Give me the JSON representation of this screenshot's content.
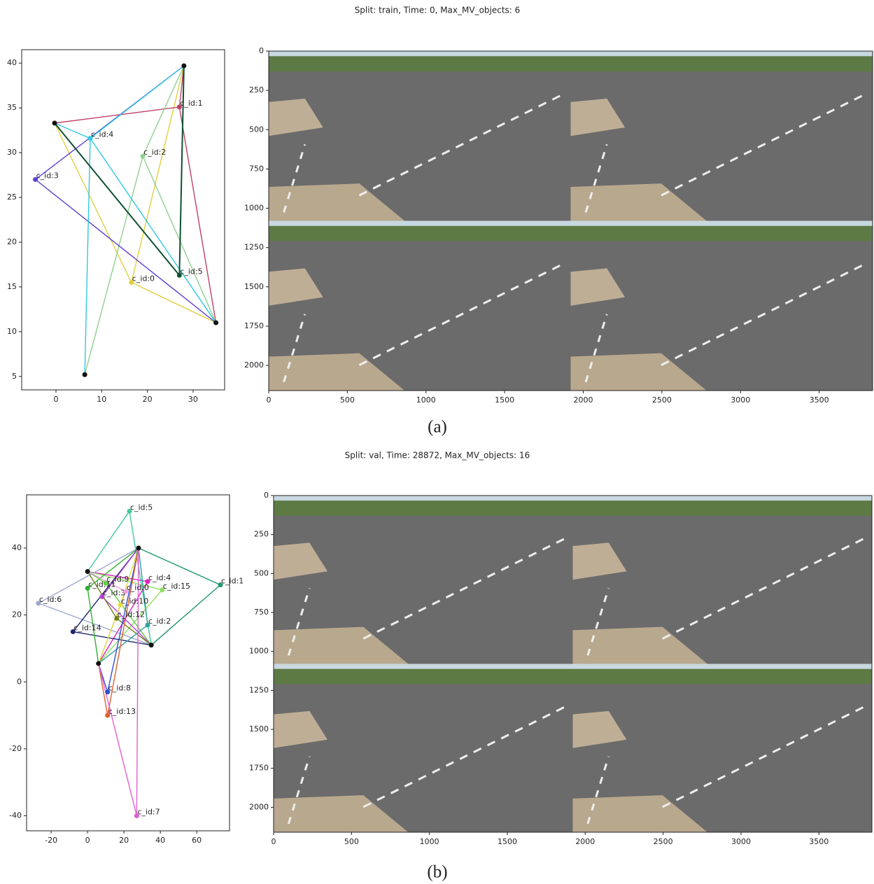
{
  "chart_data": [
    {
      "type": "network",
      "title": "Split: train, Time: 0, Max_MV_objects: 6",
      "caption": "(a)",
      "xlim": [
        -7.5,
        36.9
      ],
      "ylim": [
        3.5,
        41.5
      ],
      "xticks": [
        0,
        10,
        20,
        30
      ],
      "yticks": [
        5,
        10,
        15,
        20,
        25,
        30,
        35,
        40
      ],
      "nodes": [
        {
          "x": 28,
          "y": 39.7,
          "color": "#111111"
        },
        {
          "x": -0.3,
          "y": 33.3,
          "color": "#111111"
        },
        {
          "x": 35,
          "y": 11,
          "color": "#111111"
        },
        {
          "x": 6.3,
          "y": 5.2,
          "color": "#111111"
        },
        {
          "label": "c_id:0",
          "x": 16.5,
          "y": 15.5,
          "color": "#e0d040"
        },
        {
          "label": "c_id:1",
          "x": 27,
          "y": 35.1,
          "color": "#c04068"
        },
        {
          "label": "c_id:2",
          "x": 19,
          "y": 29.6,
          "color": "#90d090"
        },
        {
          "label": "c_id:3",
          "x": -4.5,
          "y": 27,
          "color": "#6040d0"
        },
        {
          "label": "c_id:4",
          "x": 7.5,
          "y": 31.6,
          "color": "#30c8e0"
        },
        {
          "label": "c_id:5",
          "x": 27,
          "y": 16.3,
          "color": "#105030"
        }
      ],
      "edges": [
        {
          "from": 4,
          "to": 1,
          "color": "#e0d040"
        },
        {
          "from": 4,
          "to": 2,
          "color": "#e0d040"
        },
        {
          "from": 4,
          "to": 0,
          "color": "#e0d040"
        },
        {
          "from": 5,
          "to": 1,
          "color": "#c04068"
        },
        {
          "from": 5,
          "to": 2,
          "color": "#c04068"
        },
        {
          "from": 5,
          "to": 0,
          "color": "#c04068"
        },
        {
          "from": 6,
          "to": 3,
          "color": "#90d090"
        },
        {
          "from": 6,
          "to": 0,
          "color": "#90d090"
        },
        {
          "from": 6,
          "to": 2,
          "color": "#90d090"
        },
        {
          "from": 7,
          "to": 0,
          "color": "#6040d0"
        },
        {
          "from": 7,
          "to": 2,
          "color": "#6040d0"
        },
        {
          "from": 8,
          "to": 0,
          "color": "#30c8e0"
        },
        {
          "from": 8,
          "to": 3,
          "color": "#30c8e0"
        },
        {
          "from": 8,
          "to": 2,
          "color": "#30c8e0"
        },
        {
          "from": 8,
          "to": 1,
          "color": "#30c8e0"
        },
        {
          "from": 9,
          "to": 1,
          "color": "#105030"
        },
        {
          "from": 9,
          "to": 0,
          "color": "#105030"
        }
      ]
    },
    {
      "type": "image",
      "xlim": [
        0,
        3840
      ],
      "ylim": [
        2160,
        0
      ],
      "xticks": [
        0,
        500,
        1000,
        1500,
        2000,
        2500,
        3000,
        3500
      ],
      "yticks": [
        0,
        250,
        500,
        750,
        1000,
        1250,
        1500,
        1750,
        2000
      ]
    },
    {
      "type": "network",
      "title": "Split: val, Time: 28872, Max_MV_objects: 16",
      "caption": "(b)",
      "xlim": [
        -33.5,
        78
      ],
      "ylim": [
        -44.5,
        55.9
      ],
      "xticks": [
        -20,
        0,
        20,
        40,
        60
      ],
      "yticks": [
        -40,
        -20,
        0,
        20,
        40
      ],
      "nodes": [
        {
          "x": 28,
          "y": 40,
          "color": "#111111"
        },
        {
          "x": 0,
          "y": 33,
          "color": "#111111"
        },
        {
          "x": 35,
          "y": 11,
          "color": "#111111"
        },
        {
          "x": 6,
          "y": 5.5,
          "color": "#111111"
        },
        {
          "label": "c_id:5",
          "x": 23,
          "y": 51,
          "color": "#40c8a0"
        },
        {
          "label": "c_id:4",
          "x": 33,
          "y": 30,
          "color": "#e020c0"
        },
        {
          "label": "c_id:1",
          "x": 73,
          "y": 29,
          "color": "#209870"
        },
        {
          "label": "c_id:15",
          "x": 41,
          "y": 27.5,
          "color": "#90e060"
        },
        {
          "label": "c_id:6",
          "x": -27,
          "y": 23.5,
          "color": "#a0a8d0"
        },
        {
          "label": "c_id:14",
          "x": -8,
          "y": 15,
          "color": "#202870"
        },
        {
          "label": "c_id:11",
          "x": 0,
          "y": 28,
          "color": "#30b030"
        },
        {
          "label": "c_id:9",
          "x": 10,
          "y": 29.5,
          "color": "#60d040"
        },
        {
          "label": "c_id:3",
          "x": 8,
          "y": 25.5,
          "color": "#b040d0"
        },
        {
          "label": "c_id:0",
          "x": 21,
          "y": 27,
          "color": "#f0a0e0"
        },
        {
          "label": "c_id:10",
          "x": 18,
          "y": 23,
          "color": "#e0e040"
        },
        {
          "label": "c_id:12",
          "x": 16,
          "y": 19,
          "color": "#708020"
        },
        {
          "label": "c_id:2",
          "x": 33,
          "y": 17,
          "color": "#30a0a0"
        },
        {
          "label": "c_id:8",
          "x": 11,
          "y": -3,
          "color": "#3050d0"
        },
        {
          "label": "c_id:13",
          "x": 11,
          "y": -10,
          "color": "#e06030"
        },
        {
          "label": "c_id:7",
          "x": 27,
          "y": -40,
          "color": "#e060d0"
        }
      ],
      "edges": [
        {
          "from": 4,
          "to": 1,
          "color": "#40c8a0"
        },
        {
          "from": 4,
          "to": 2,
          "color": "#40c8a0"
        },
        {
          "from": 5,
          "to": 3,
          "color": "#e020c0"
        },
        {
          "from": 5,
          "to": 1,
          "color": "#e020c0"
        },
        {
          "from": 6,
          "to": 0,
          "color": "#209870"
        },
        {
          "from": 6,
          "to": 2,
          "color": "#209870"
        },
        {
          "from": 7,
          "to": 1,
          "color": "#90e060"
        },
        {
          "from": 7,
          "to": 3,
          "color": "#90e060"
        },
        {
          "from": 8,
          "to": 0,
          "color": "#a0a8d0"
        },
        {
          "from": 8,
          "to": 2,
          "color": "#a0a8d0"
        },
        {
          "from": 9,
          "to": 0,
          "color": "#202870"
        },
        {
          "from": 9,
          "to": 2,
          "color": "#202870"
        },
        {
          "from": 10,
          "to": 0,
          "color": "#30b030"
        },
        {
          "from": 10,
          "to": 3,
          "color": "#30b030"
        },
        {
          "from": 11,
          "to": 2,
          "color": "#60d040"
        },
        {
          "from": 11,
          "to": 1,
          "color": "#60d040"
        },
        {
          "from": 12,
          "to": 0,
          "color": "#b040d0"
        },
        {
          "from": 12,
          "to": 2,
          "color": "#b040d0"
        },
        {
          "from": 13,
          "to": 3,
          "color": "#f0a0e0"
        },
        {
          "from": 13,
          "to": 1,
          "color": "#f0a0e0"
        },
        {
          "from": 14,
          "to": 0,
          "color": "#e0e040"
        },
        {
          "from": 14,
          "to": 3,
          "color": "#e0e040"
        },
        {
          "from": 15,
          "to": 1,
          "color": "#708020"
        },
        {
          "from": 15,
          "to": 2,
          "color": "#708020"
        },
        {
          "from": 16,
          "to": 0,
          "color": "#30a0a0"
        },
        {
          "from": 16,
          "to": 3,
          "color": "#30a0a0"
        },
        {
          "from": 17,
          "to": 3,
          "color": "#3050d0"
        },
        {
          "from": 17,
          "to": 0,
          "color": "#3050d0"
        },
        {
          "from": 18,
          "to": 3,
          "color": "#e06030"
        },
        {
          "from": 18,
          "to": 0,
          "color": "#e06030"
        },
        {
          "from": 19,
          "to": 0,
          "color": "#e060d0"
        },
        {
          "from": 19,
          "to": 3,
          "color": "#e060d0"
        }
      ]
    },
    {
      "type": "image",
      "xlim": [
        0,
        3840
      ],
      "ylim": [
        2160,
        0
      ],
      "xticks": [
        0,
        500,
        1000,
        1500,
        2000,
        2500,
        3000,
        3500
      ],
      "yticks": [
        0,
        250,
        500,
        750,
        1000,
        1250,
        1500,
        1750,
        2000
      ]
    }
  ]
}
